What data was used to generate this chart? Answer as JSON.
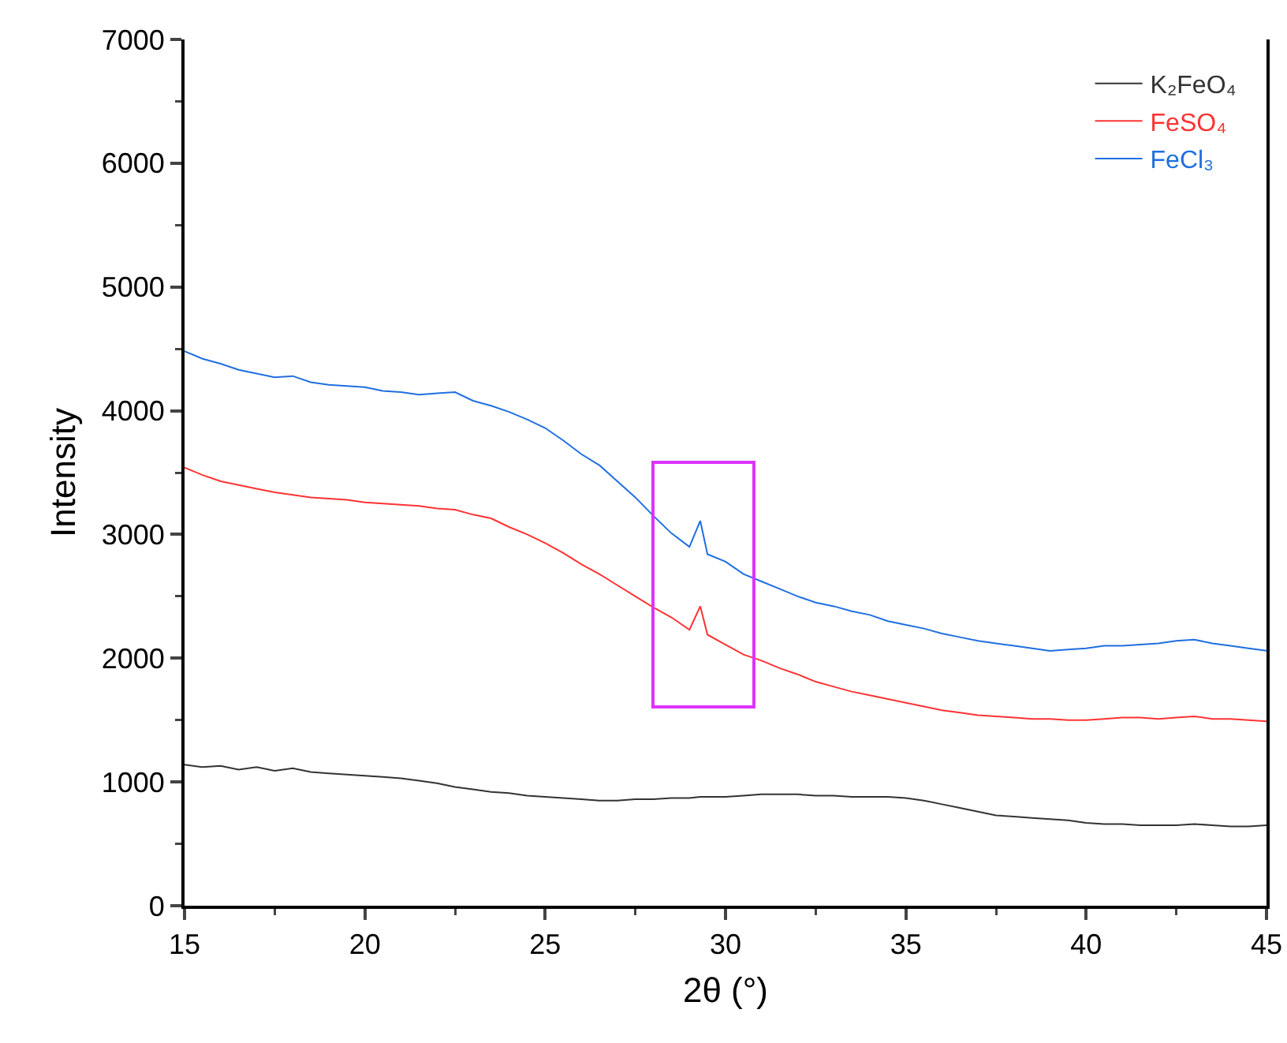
{
  "chart_data": {
    "type": "line",
    "xlabel": "2θ (°)",
    "ylabel": "Intensity",
    "x": [
      15,
      15.5,
      16,
      16.5,
      17,
      17.5,
      18,
      18.5,
      19,
      19.5,
      20,
      20.5,
      21,
      21.5,
      22,
      22.5,
      23,
      23.5,
      24,
      24.5,
      25,
      25.5,
      26,
      26.5,
      27,
      27.5,
      28,
      28.5,
      29,
      29.3,
      29.5,
      30,
      30.5,
      31,
      31.5,
      32,
      32.5,
      33,
      33.5,
      34,
      34.5,
      35,
      35.5,
      36,
      36.5,
      37,
      37.5,
      38,
      38.5,
      39,
      39.5,
      40,
      40.5,
      41,
      41.5,
      42,
      42.5,
      43,
      43.5,
      44,
      44.5,
      45
    ],
    "series": [
      {
        "name": "K₂FeO₄",
        "color": "#333333",
        "values": [
          1140,
          1120,
          1130,
          1100,
          1120,
          1090,
          1110,
          1080,
          1070,
          1060,
          1050,
          1040,
          1030,
          1010,
          990,
          960,
          940,
          920,
          910,
          890,
          880,
          870,
          860,
          850,
          850,
          860,
          860,
          870,
          870,
          880,
          880,
          880,
          890,
          900,
          900,
          900,
          890,
          890,
          880,
          880,
          880,
          870,
          850,
          820,
          790,
          760,
          730,
          720,
          710,
          700,
          690,
          670,
          660,
          660,
          650,
          650,
          650,
          660,
          650,
          640,
          640,
          650
        ]
      },
      {
        "name": "FeSO₄",
        "color": "#ff3333",
        "values": [
          3540,
          3480,
          3430,
          3400,
          3370,
          3340,
          3320,
          3300,
          3290,
          3280,
          3260,
          3250,
          3240,
          3230,
          3210,
          3200,
          3160,
          3130,
          3060,
          3000,
          2930,
          2850,
          2760,
          2680,
          2590,
          2500,
          2410,
          2330,
          2230,
          2420,
          2190,
          2110,
          2030,
          1980,
          1920,
          1870,
          1810,
          1770,
          1730,
          1700,
          1670,
          1640,
          1610,
          1580,
          1560,
          1540,
          1530,
          1520,
          1510,
          1510,
          1500,
          1500,
          1510,
          1520,
          1520,
          1510,
          1520,
          1530,
          1510,
          1510,
          1500,
          1490
        ]
      },
      {
        "name": "FeCl₃",
        "color": "#1f6fe0",
        "values": [
          4480,
          4420,
          4380,
          4330,
          4300,
          4270,
          4280,
          4230,
          4210,
          4200,
          4190,
          4160,
          4150,
          4130,
          4140,
          4150,
          4080,
          4040,
          3990,
          3930,
          3860,
          3760,
          3650,
          3560,
          3430,
          3300,
          3150,
          3010,
          2900,
          3110,
          2840,
          2780,
          2680,
          2620,
          2560,
          2500,
          2450,
          2420,
          2380,
          2350,
          2300,
          2270,
          2240,
          2200,
          2170,
          2140,
          2120,
          2100,
          2080,
          2060,
          2070,
          2080,
          2100,
          2100,
          2110,
          2120,
          2140,
          2150,
          2120,
          2100,
          2080,
          2060
        ]
      }
    ],
    "xlim": [
      15,
      45
    ],
    "xticks": [
      15,
      20,
      25,
      30,
      35,
      40,
      45
    ],
    "ylim": [
      0,
      7000
    ],
    "yticks": [
      0,
      1000,
      2000,
      3000,
      4000,
      5000,
      6000,
      7000
    ],
    "grid": false,
    "legend": "top right",
    "marker": "none",
    "line_style": "solid"
  }
}
